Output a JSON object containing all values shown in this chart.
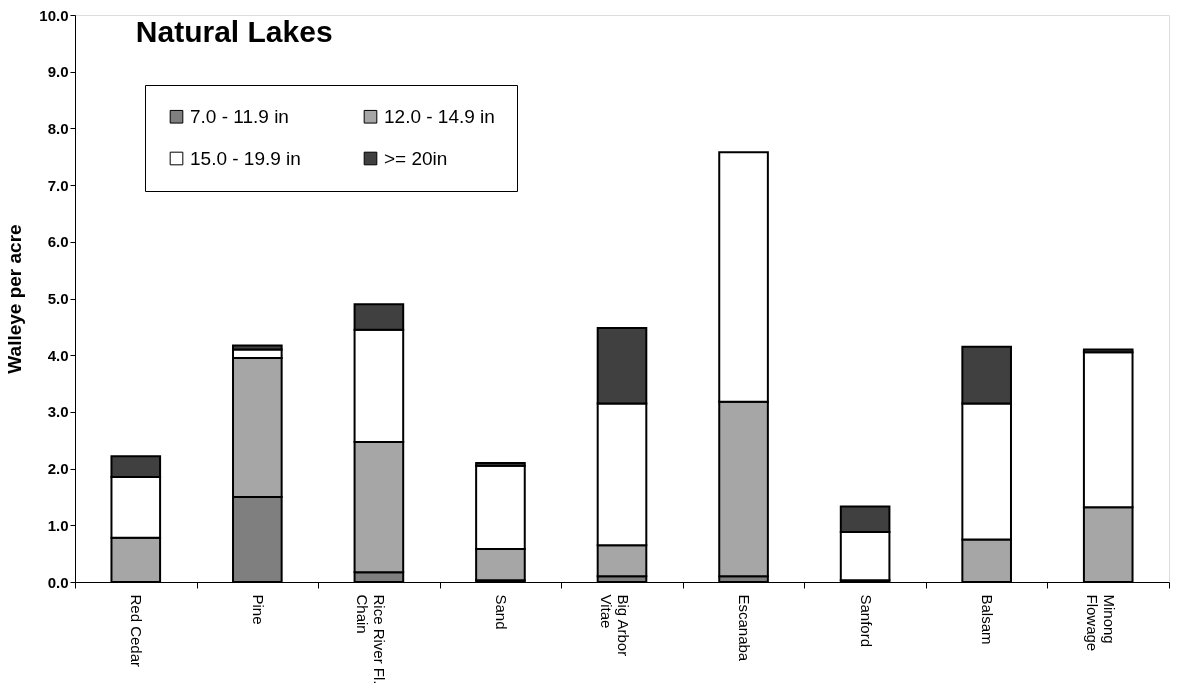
{
  "chart_data": {
    "type": "bar",
    "stacked": true,
    "title": "Natural Lakes",
    "ylabel": "Walleye per acre",
    "categories": [
      "Red Cedar",
      "Pine",
      "Rice River Fl.\nChain",
      "Sand",
      "Big Arbor\nVitae",
      "Escanaba",
      "Sanford",
      "Balsam",
      "Minong\nFlowage"
    ],
    "series": [
      {
        "name": "7.0 - 11.9 in",
        "color": "#7f7f7f",
        "values": [
          0,
          1.5,
          0.17,
          0.03,
          0.1,
          0.1,
          0.03,
          0,
          0
        ]
      },
      {
        "name": "12.0 - 14.9 in",
        "color": "#a6a6a6",
        "values": [
          0.78,
          2.45,
          2.3,
          0.55,
          0.55,
          3.08,
          0,
          0.75,
          1.32
        ]
      },
      {
        "name": "15.0 - 19.9 in",
        "color": "#ffffff",
        "values": [
          1.07,
          0.15,
          1.98,
          1.47,
          2.5,
          4.4,
          0.85,
          2.4,
          2.73
        ]
      },
      {
        "name": ">= 20in",
        "color": "#404040",
        "values": [
          0.37,
          0.07,
          0.45,
          0.05,
          1.33,
          0,
          0.45,
          1.0,
          0.05
        ]
      }
    ],
    "ylim": [
      0,
      10
    ],
    "yticks": [
      {
        "value": 0,
        "label": "0.0"
      },
      {
        "value": 1,
        "label": "1.0"
      },
      {
        "value": 2,
        "label": "2.0"
      },
      {
        "value": 3,
        "label": "3.0"
      },
      {
        "value": 4,
        "label": "4.0"
      },
      {
        "value": 5,
        "label": "5.0"
      },
      {
        "value": 6,
        "label": "6.0"
      },
      {
        "value": 7,
        "label": "7.0"
      },
      {
        "value": 8,
        "label": "8.0"
      },
      {
        "value": 9,
        "label": "9.0"
      },
      {
        "value": 10,
        "label": "10.0"
      }
    ],
    "grid": false,
    "legend": "top left"
  }
}
